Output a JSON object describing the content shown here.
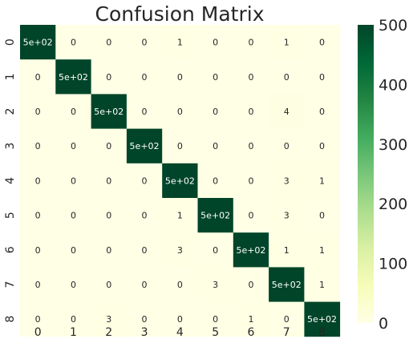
{
  "chart_data": {
    "type": "heatmap",
    "title": "Confusion Matrix",
    "xlabel": "",
    "ylabel": "",
    "x_categories": [
      "0",
      "1",
      "2",
      "3",
      "4",
      "5",
      "6",
      "7",
      "8"
    ],
    "y_categories": [
      "0",
      "1",
      "2",
      "3",
      "4",
      "5",
      "6",
      "7",
      "8"
    ],
    "values": [
      [
        500,
        0,
        0,
        0,
        1,
        0,
        0,
        1,
        0
      ],
      [
        0,
        500,
        0,
        0,
        0,
        0,
        0,
        0,
        0
      ],
      [
        0,
        0,
        500,
        0,
        0,
        0,
        0,
        4,
        0
      ],
      [
        0,
        0,
        0,
        500,
        0,
        0,
        0,
        0,
        0
      ],
      [
        0,
        0,
        0,
        0,
        500,
        0,
        0,
        3,
        1
      ],
      [
        0,
        0,
        0,
        0,
        1,
        500,
        0,
        3,
        0
      ],
      [
        0,
        0,
        0,
        0,
        3,
        0,
        500,
        1,
        1
      ],
      [
        0,
        0,
        0,
        0,
        0,
        3,
        0,
        500,
        1
      ],
      [
        0,
        0,
        3,
        0,
        0,
        0,
        1,
        0,
        500
      ]
    ],
    "cell_labels": [
      [
        "5e+02",
        "0",
        "0",
        "0",
        "1",
        "0",
        "0",
        "1",
        "0"
      ],
      [
        "0",
        "5e+02",
        "0",
        "0",
        "0",
        "0",
        "0",
        "0",
        "0"
      ],
      [
        "0",
        "0",
        "5e+02",
        "0",
        "0",
        "0",
        "0",
        "4",
        "0"
      ],
      [
        "0",
        "0",
        "0",
        "5e+02",
        "0",
        "0",
        "0",
        "0",
        "0"
      ],
      [
        "0",
        "0",
        "0",
        "0",
        "5e+02",
        "0",
        "0",
        "3",
        "1"
      ],
      [
        "0",
        "0",
        "0",
        "0",
        "1",
        "5e+02",
        "0",
        "3",
        "0"
      ],
      [
        "0",
        "0",
        "0",
        "0",
        "3",
        "0",
        "5e+02",
        "1",
        "1"
      ],
      [
        "0",
        "0",
        "0",
        "0",
        "0",
        "3",
        "0",
        "5e+02",
        "1"
      ],
      [
        "0",
        "0",
        "3",
        "0",
        "0",
        "0",
        "1",
        "0",
        "5e+02"
      ]
    ],
    "colorbar": {
      "min": 0,
      "max": 500,
      "ticks": [
        0,
        100,
        200,
        300,
        400,
        500
      ],
      "tick_labels": [
        "0",
        "100",
        "200",
        "300",
        "400",
        "500"
      ],
      "colormap": "YlGn",
      "stops": [
        "#ffffe5",
        "#f7fcb9",
        "#d9f0a3",
        "#addd8e",
        "#78c679",
        "#41ab5d",
        "#238443",
        "#006837",
        "#004529"
      ]
    },
    "grid": false,
    "legend": "colorbar-right"
  }
}
